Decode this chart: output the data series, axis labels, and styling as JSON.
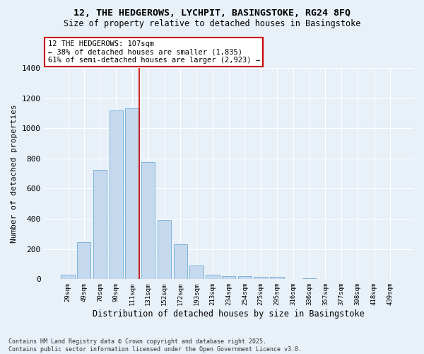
{
  "title_line1": "12, THE HEDGEROWS, LYCHPIT, BASINGSTOKE, RG24 8FQ",
  "title_line2": "Size of property relative to detached houses in Basingstoke",
  "xlabel": "Distribution of detached houses by size in Basingstoke",
  "ylabel": "Number of detached properties",
  "bar_color": "#c5d9ee",
  "bar_edge_color": "#7fb3d9",
  "background_color": "#e8f0f8",
  "grid_color": "#ffffff",
  "red_line_x": 4.45,
  "annotation_text": "12 THE HEDGEROWS: 107sqm\n← 38% of detached houses are smaller (1,835)\n61% of semi-detached houses are larger (2,923) →",
  "categories": [
    "29sqm",
    "49sqm",
    "70sqm",
    "90sqm",
    "111sqm",
    "131sqm",
    "152sqm",
    "172sqm",
    "193sqm",
    "213sqm",
    "234sqm",
    "254sqm",
    "275sqm",
    "295sqm",
    "316sqm",
    "336sqm",
    "357sqm",
    "377sqm",
    "398sqm",
    "418sqm",
    "439sqm"
  ],
  "values": [
    30,
    245,
    725,
    1120,
    1130,
    775,
    390,
    230,
    90,
    30,
    20,
    20,
    15,
    15,
    0,
    8,
    0,
    0,
    0,
    0,
    0
  ],
  "ylim": [
    0,
    1400
  ],
  "yticks": [
    0,
    200,
    400,
    600,
    800,
    1000,
    1200,
    1400
  ],
  "footnote_line1": "Contains HM Land Registry data © Crown copyright and database right 2025.",
  "footnote_line2": "Contains public sector information licensed under the Open Government Licence v3.0.",
  "figsize": [
    6.0,
    5.0
  ],
  "dpi": 100
}
